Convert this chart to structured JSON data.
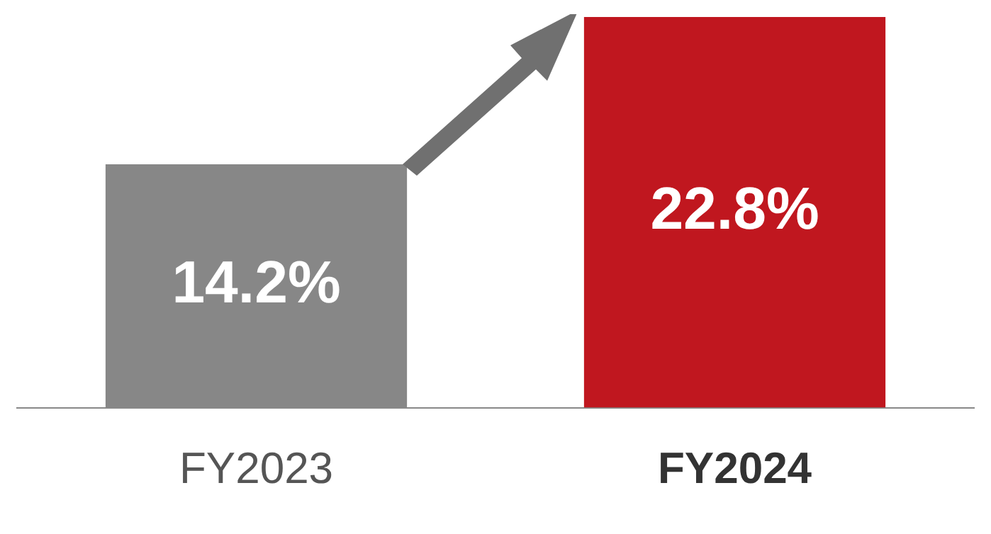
{
  "chart_data": {
    "type": "bar",
    "categories": [
      "FY2023",
      "FY2024"
    ],
    "values": [
      14.2,
      22.8
    ],
    "colors": [
      "#878787",
      "#c0171f"
    ],
    "value_labels": [
      "14.2%",
      "22.8%"
    ],
    "ylim": [
      0,
      22.8
    ],
    "tick_labels": "x",
    "grid": false,
    "legend": false
  }
}
